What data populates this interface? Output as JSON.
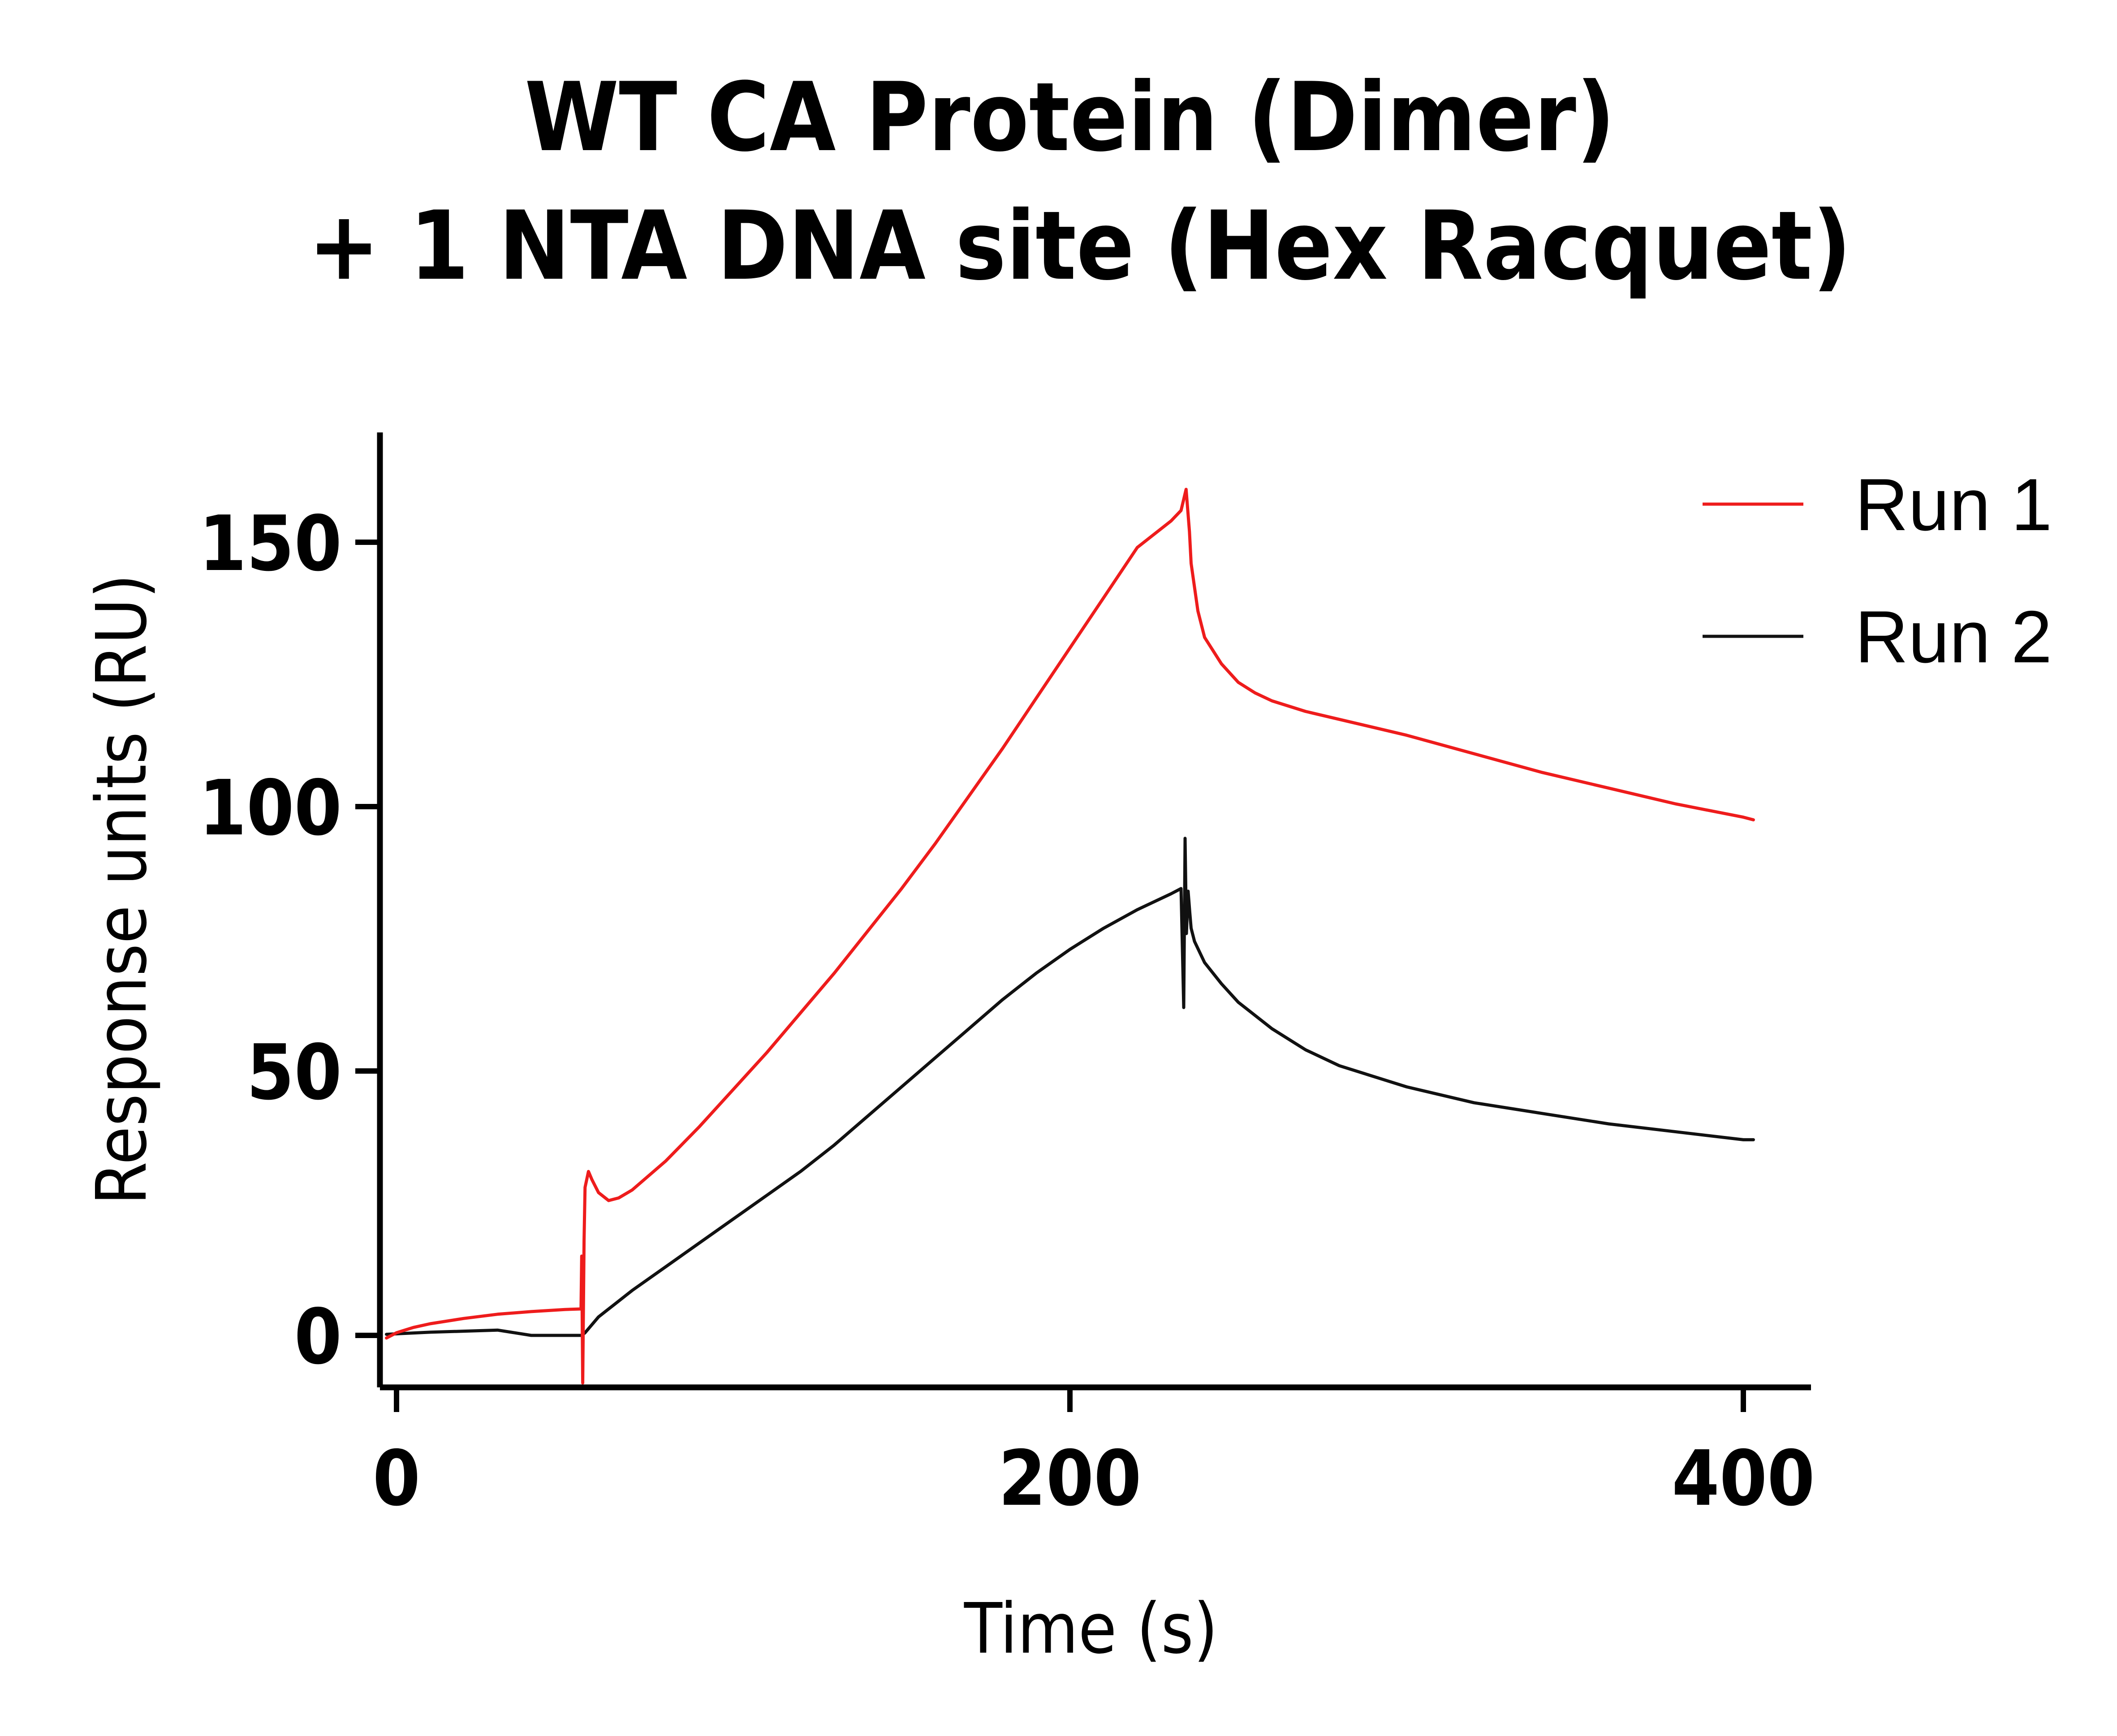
{
  "chart_data": {
    "type": "line",
    "title": [
      "WT CA Protein (Dimer)",
      "+ 1 NTA DNA site (Hex Racquet)"
    ],
    "xlabel": "Time (s)",
    "ylabel": "Response units (RU)",
    "xlim": [
      -3,
      420
    ],
    "ylim": [
      -10,
      170
    ],
    "xticks": [
      0,
      200,
      400
    ],
    "yticks": [
      0,
      50,
      100,
      150
    ],
    "grid": false,
    "legend_position": "top-right",
    "series": [
      {
        "name": "Run 1",
        "color": "#ee1c1c",
        "x": [
          -3,
          0,
          5,
          10,
          20,
          30,
          40,
          50,
          54.8,
          55.0,
          55.3,
          55.7,
          56,
          57,
          58,
          60,
          63,
          66,
          70,
          80,
          90,
          100,
          110,
          120,
          130,
          140,
          150,
          160,
          170,
          180,
          190,
          200,
          210,
          220,
          230,
          233,
          234.5,
          235.5,
          236,
          238,
          240,
          245,
          250,
          255,
          260,
          270,
          280,
          300,
          320,
          340,
          360,
          380,
          400,
          403
        ],
        "y": [
          -0.5,
          0.5,
          1.5,
          2.2,
          3.2,
          4.0,
          4.5,
          4.9,
          5.0,
          15.0,
          -9.0,
          18.0,
          28.0,
          31.0,
          29.5,
          27.0,
          25.5,
          26.0,
          27.5,
          33.0,
          39.5,
          46.5,
          53.5,
          61.0,
          68.5,
          76.5,
          84.5,
          93.0,
          102.0,
          111.0,
          120.5,
          130.0,
          139.5,
          149.0,
          154.0,
          156.0,
          160.0,
          152.0,
          146.0,
          137.0,
          132.0,
          127.0,
          123.5,
          121.5,
          120.0,
          118.0,
          116.5,
          113.5,
          110.0,
          106.5,
          103.5,
          100.5,
          98.0,
          97.5
        ]
      },
      {
        "name": "Run 2",
        "color": "#111111",
        "x": [
          -3,
          0,
          10,
          20,
          30,
          35,
          40,
          50,
          55,
          56,
          58,
          60,
          65,
          70,
          80,
          90,
          100,
          110,
          120,
          130,
          140,
          150,
          160,
          170,
          180,
          190,
          200,
          210,
          220,
          230,
          233,
          233.8,
          234.2,
          234.6,
          235.1,
          235.6,
          236,
          237,
          240,
          245,
          250,
          260,
          270,
          280,
          300,
          320,
          340,
          360,
          380,
          400,
          403
        ],
        "y": [
          0.2,
          0.3,
          0.6,
          0.8,
          1.0,
          0.5,
          0.0,
          0.0,
          0.0,
          0.5,
          2.0,
          3.5,
          6.0,
          8.5,
          13.0,
          17.5,
          22.0,
          26.5,
          31.0,
          36.0,
          41.5,
          47.0,
          52.5,
          58.0,
          63.5,
          68.5,
          73.0,
          77.0,
          80.5,
          83.5,
          84.5,
          62.0,
          94.0,
          76.0,
          84.0,
          80.0,
          77.0,
          74.5,
          70.5,
          66.5,
          63.0,
          58.0,
          54.0,
          51.0,
          47.0,
          44.0,
          42.0,
          40.0,
          38.5,
          37.0,
          37.0
        ]
      }
    ]
  }
}
